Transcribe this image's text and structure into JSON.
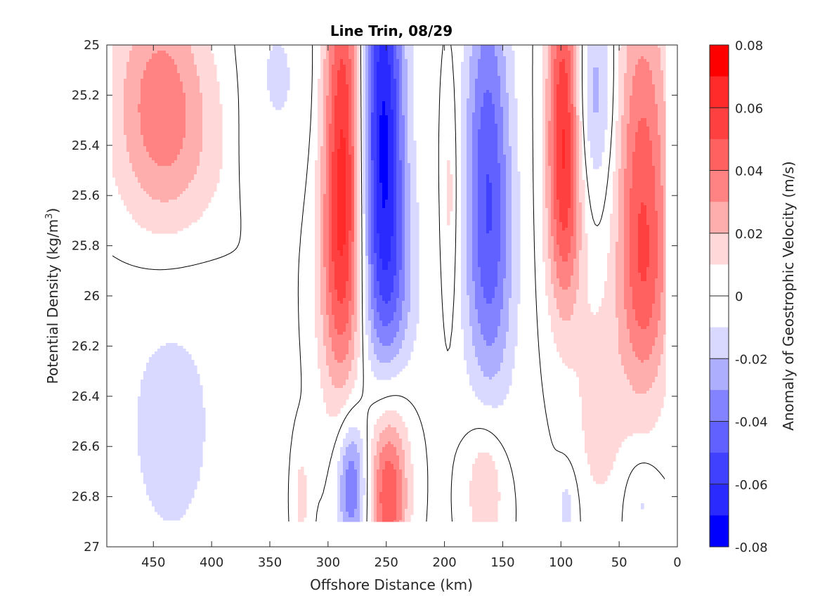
{
  "chart_data": {
    "type": "heatmap",
    "subtype": "filled-contour",
    "title": "Line Trin, 08/29",
    "xlabel": "Offshore Distance (km)",
    "ylabel_main": "Potential Density (kg/m",
    "ylabel_sup": "3",
    "ylabel_close": ")",
    "xlim": [
      490,
      0
    ],
    "x_reversed": true,
    "ylim": [
      25,
      27
    ],
    "y_reversed": true,
    "xticks": [
      450,
      400,
      350,
      300,
      250,
      200,
      150,
      100,
      50,
      0
    ],
    "yticks": [
      25,
      25.2,
      25.4,
      25.6,
      25.8,
      26,
      26.2,
      26.4,
      26.6,
      26.8,
      27
    ],
    "ytick_labels": [
      "25",
      "25.2",
      "25.4",
      "25.6",
      "25.8",
      "26",
      "26.2",
      "26.4",
      "26.6",
      "26.8",
      "27"
    ],
    "colorbar": {
      "label": "Anomaly of Geostrophic Velocity (m/s)",
      "range": [
        -0.08,
        0.08
      ],
      "ticks": [
        0.08,
        0.06,
        0.04,
        0.02,
        0,
        -0.02,
        -0.04,
        -0.06,
        -0.08
      ],
      "tick_labels": [
        "0.08",
        "0.06",
        "0.04",
        "0.02",
        "0",
        "-0.02",
        "-0.04",
        "-0.06",
        "-0.08"
      ],
      "levels": [
        {
          "value": 0.075,
          "color": "#ff0000"
        },
        {
          "value": 0.065,
          "color": "#ff2a2a"
        },
        {
          "value": 0.055,
          "color": "#ff4040"
        },
        {
          "value": 0.045,
          "color": "#ff6161"
        },
        {
          "value": 0.035,
          "color": "#ff8383"
        },
        {
          "value": 0.025,
          "color": "#ffaeae"
        },
        {
          "value": 0.015,
          "color": "#ffd9d9"
        },
        {
          "value": 0.005,
          "color": "#ffffff"
        },
        {
          "value": -0.005,
          "color": "#ffffff"
        },
        {
          "value": -0.015,
          "color": "#d9d9ff"
        },
        {
          "value": -0.025,
          "color": "#aeaeff"
        },
        {
          "value": -0.035,
          "color": "#8383ff"
        },
        {
          "value": -0.045,
          "color": "#6161ff"
        },
        {
          "value": -0.055,
          "color": "#4040ff"
        },
        {
          "value": -0.065,
          "color": "#2a2aff"
        },
        {
          "value": -0.075,
          "color": "#0000ff"
        }
      ]
    },
    "data_extent": {
      "x_min": 10,
      "x_max": 485,
      "y_min": 25,
      "y_max": 26.9
    },
    "features": [
      {
        "x": 445,
        "y": 25.2,
        "amp": 0.03,
        "sx": 28,
        "sy": 0.35
      },
      {
        "x": 425,
        "y": 25.45,
        "amp": 0.012,
        "sx": 40,
        "sy": 0.3
      },
      {
        "x": 435,
        "y": 26.5,
        "amp": -0.013,
        "sx": 40,
        "sy": 0.55
      },
      {
        "x": 345,
        "y": 25.15,
        "amp": -0.012,
        "sx": 22,
        "sy": 0.3
      },
      {
        "x": 287,
        "y": 25.35,
        "amp": 0.058,
        "sx": 12,
        "sy": 0.6
      },
      {
        "x": 290,
        "y": 25.95,
        "amp": 0.022,
        "sx": 14,
        "sy": 0.35
      },
      {
        "x": 253,
        "y": 25.3,
        "amp": -0.07,
        "sx": 13,
        "sy": 0.6
      },
      {
        "x": 245,
        "y": 26.0,
        "amp": -0.022,
        "sx": 17,
        "sy": 0.35
      },
      {
        "x": 195,
        "y": 25.6,
        "amp": 0.015,
        "sx": 5,
        "sy": 0.35
      },
      {
        "x": 163,
        "y": 25.4,
        "amp": -0.04,
        "sx": 14,
        "sy": 0.55
      },
      {
        "x": 160,
        "y": 25.95,
        "amp": -0.02,
        "sx": 16,
        "sy": 0.4
      },
      {
        "x": 98,
        "y": 25.25,
        "amp": 0.055,
        "sx": 10,
        "sy": 0.45
      },
      {
        "x": 95,
        "y": 25.75,
        "amp": 0.02,
        "sx": 12,
        "sy": 0.3
      },
      {
        "x": 70,
        "y": 25.2,
        "amp": -0.025,
        "sx": 12,
        "sy": 0.3
      },
      {
        "x": 30,
        "y": 25.5,
        "amp": 0.042,
        "sx": 17,
        "sy": 0.55
      },
      {
        "x": 28,
        "y": 26.0,
        "amp": 0.02,
        "sx": 15,
        "sy": 0.3
      },
      {
        "x": 67,
        "y": 26.45,
        "amp": 0.016,
        "sx": 14,
        "sy": 0.3
      },
      {
        "x": 280,
        "y": 26.75,
        "amp": -0.042,
        "sx": 9,
        "sy": 0.2
      },
      {
        "x": 248,
        "y": 26.82,
        "amp": 0.045,
        "sx": 11,
        "sy": 0.22
      },
      {
        "x": 248,
        "y": 26.5,
        "amp": 0.018,
        "sx": 15,
        "sy": 0.25
      },
      {
        "x": 165,
        "y": 26.75,
        "amp": 0.022,
        "sx": 12,
        "sy": 0.2
      },
      {
        "x": 323,
        "y": 26.8,
        "amp": 0.014,
        "sx": 5,
        "sy": 0.15
      },
      {
        "x": 95,
        "y": 26.85,
        "amp": -0.015,
        "sx": 6,
        "sy": 0.1
      },
      {
        "x": 30,
        "y": 26.82,
        "amp": -0.013,
        "sx": 10,
        "sy": 0.12
      },
      {
        "x": 370,
        "y": 25.45,
        "amp": -0.01,
        "sx": 4,
        "sy": 0.15
      }
    ]
  }
}
